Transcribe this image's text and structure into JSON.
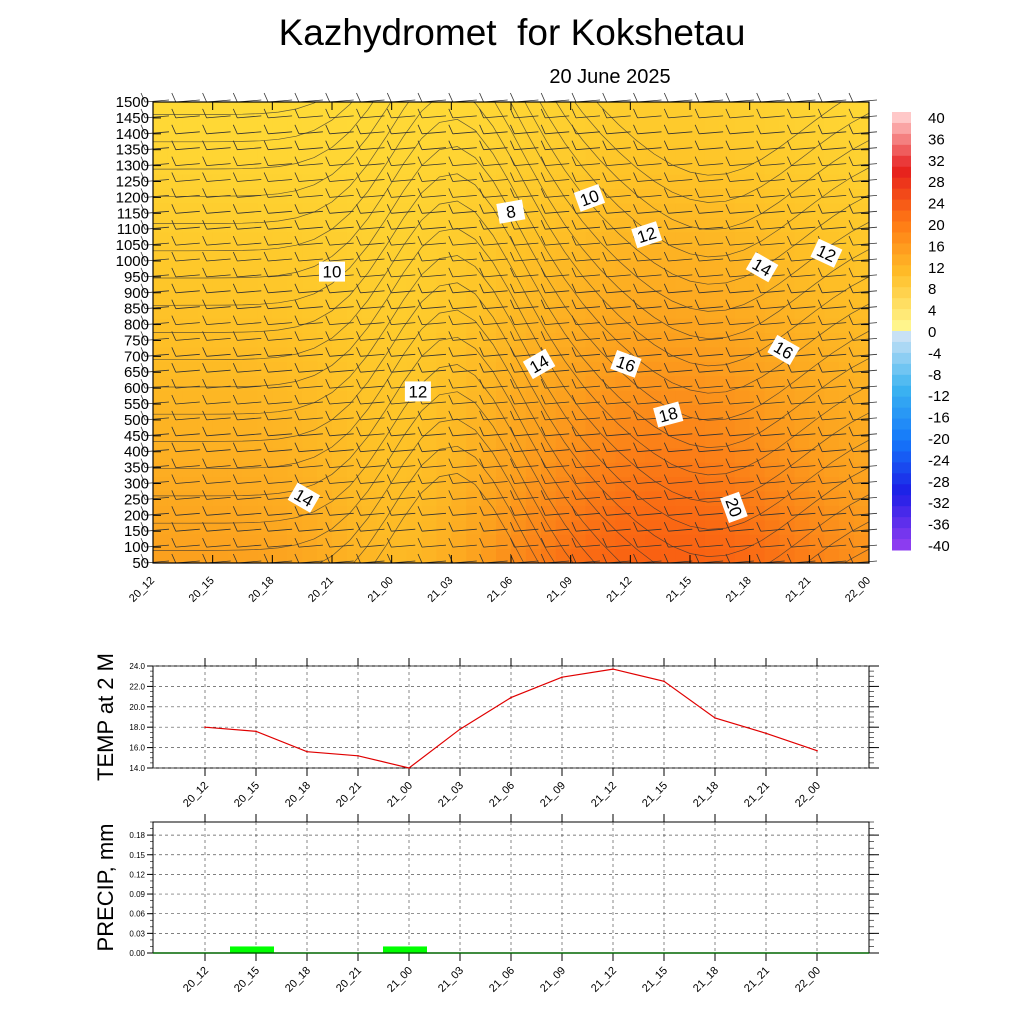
{
  "title": "Kazhydromet  for Kokshetau",
  "subtitle": "20 June 2025",
  "chart_data": [
    {
      "type": "heatmap",
      "name": "temperature cross-section with wind barbs",
      "time_labels": [
        "20_12",
        "20_15",
        "20_18",
        "20_21",
        "21_00",
        "21_03",
        "21_06",
        "21_09",
        "21_12",
        "21_15",
        "21_18",
        "21_21",
        "22_00"
      ],
      "y_labels": [
        "50",
        "100",
        "150",
        "200",
        "250",
        "300",
        "350",
        "400",
        "450",
        "500",
        "550",
        "600",
        "650",
        "700",
        "750",
        "800",
        "850",
        "900",
        "950",
        "1000",
        "1050",
        "1100",
        "1150",
        "1200",
        "1250",
        "1300",
        "1350",
        "1400",
        "1450",
        "1500"
      ],
      "contour_labels": [
        "8",
        "10",
        "10",
        "12",
        "12",
        "12",
        "14",
        "14",
        "14",
        "16",
        "16",
        "18",
        "20"
      ],
      "colorbar": {
        "labels": [
          "40",
          "36",
          "32",
          "28",
          "24",
          "20",
          "16",
          "12",
          "8",
          "4",
          "0",
          "-4",
          "-8",
          "-12",
          "-16",
          "-20",
          "-24",
          "-28",
          "-32",
          "-36",
          "-40"
        ],
        "min": -40,
        "max": 40
      },
      "field_range": [
        6,
        22
      ]
    },
    {
      "type": "line",
      "ylabel": "TEMP at 2 M",
      "x": [
        "20_12",
        "20_15",
        "20_18",
        "20_21",
        "21_00",
        "21_03",
        "21_06",
        "21_09",
        "21_12",
        "21_15",
        "21_18",
        "21_21",
        "22_00"
      ],
      "values": [
        18.0,
        17.6,
        15.6,
        15.2,
        14.0,
        17.8,
        20.9,
        22.9,
        23.7,
        22.5,
        18.9,
        17.4,
        15.7
      ],
      "ylim": [
        14.0,
        24.0
      ],
      "y_ticks": [
        "14.0",
        "16.0",
        "18.0",
        "20.0",
        "22.0",
        "24.0"
      ],
      "color": "#e00000"
    },
    {
      "type": "bar",
      "ylabel": "PRECIP, mm",
      "x": [
        "20_12",
        "20_15",
        "20_18",
        "20_21",
        "21_00",
        "21_03",
        "21_06",
        "21_09",
        "21_12",
        "21_15",
        "21_18",
        "21_21",
        "22_00"
      ],
      "values": [
        0,
        0.01,
        0,
        0,
        0.01,
        0,
        0,
        0,
        0,
        0,
        0,
        0,
        0
      ],
      "ylim": [
        0,
        0.2
      ],
      "y_ticks": [
        "0.00",
        "0.03",
        "0.06",
        "0.09",
        "0.12",
        "0.15",
        "0.18"
      ],
      "color": "#00ff00"
    }
  ]
}
